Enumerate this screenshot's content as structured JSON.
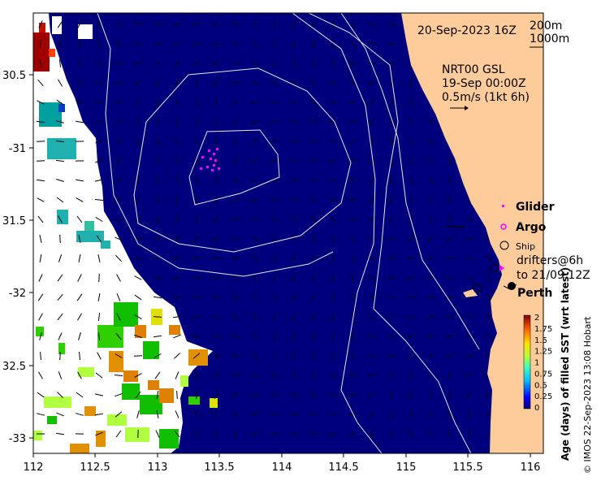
{
  "map": {
    "timestamp": "20-Sep-2023 16Z",
    "isobath_shallow": "200m",
    "isobath_deep": "1000m",
    "current_source": "NRT00 GSL",
    "current_time": "19-Sep 00:00Z",
    "current_scale": "0.5m/s (1kt 6h)",
    "credit": "© IMOS 22-Sep-2023 13:08 Hobart",
    "lon_ticks": [
      "112",
      "112.5",
      "113",
      "113.5",
      "114",
      "114.5",
      "115",
      "115.5",
      "116"
    ],
    "lat_ticks": [
      "30.5",
      "-31",
      "31.5",
      "-32",
      "32.5",
      "-33"
    ],
    "colors": {
      "ocean": "#00007f",
      "land": "#fdcc9a",
      "no_data": "#ffffff",
      "glider": "#ff00ff",
      "contour": "#e6e6e6"
    }
  },
  "legend": {
    "glider": "Glider",
    "argo": "Argo",
    "ship": "Ship",
    "drifters_line1": "drifters@6h",
    "drifters_line2": "to 21/09 12Z",
    "city": "Perth"
  },
  "colorbar": {
    "title": "Age (days) of filled SST (wrt latest)",
    "ticks": [
      "2",
      "1.75",
      "1.5",
      "1.25",
      "1",
      "0.75",
      "0.5",
      "0.25",
      "0"
    ],
    "range": [
      0,
      2
    ]
  }
}
